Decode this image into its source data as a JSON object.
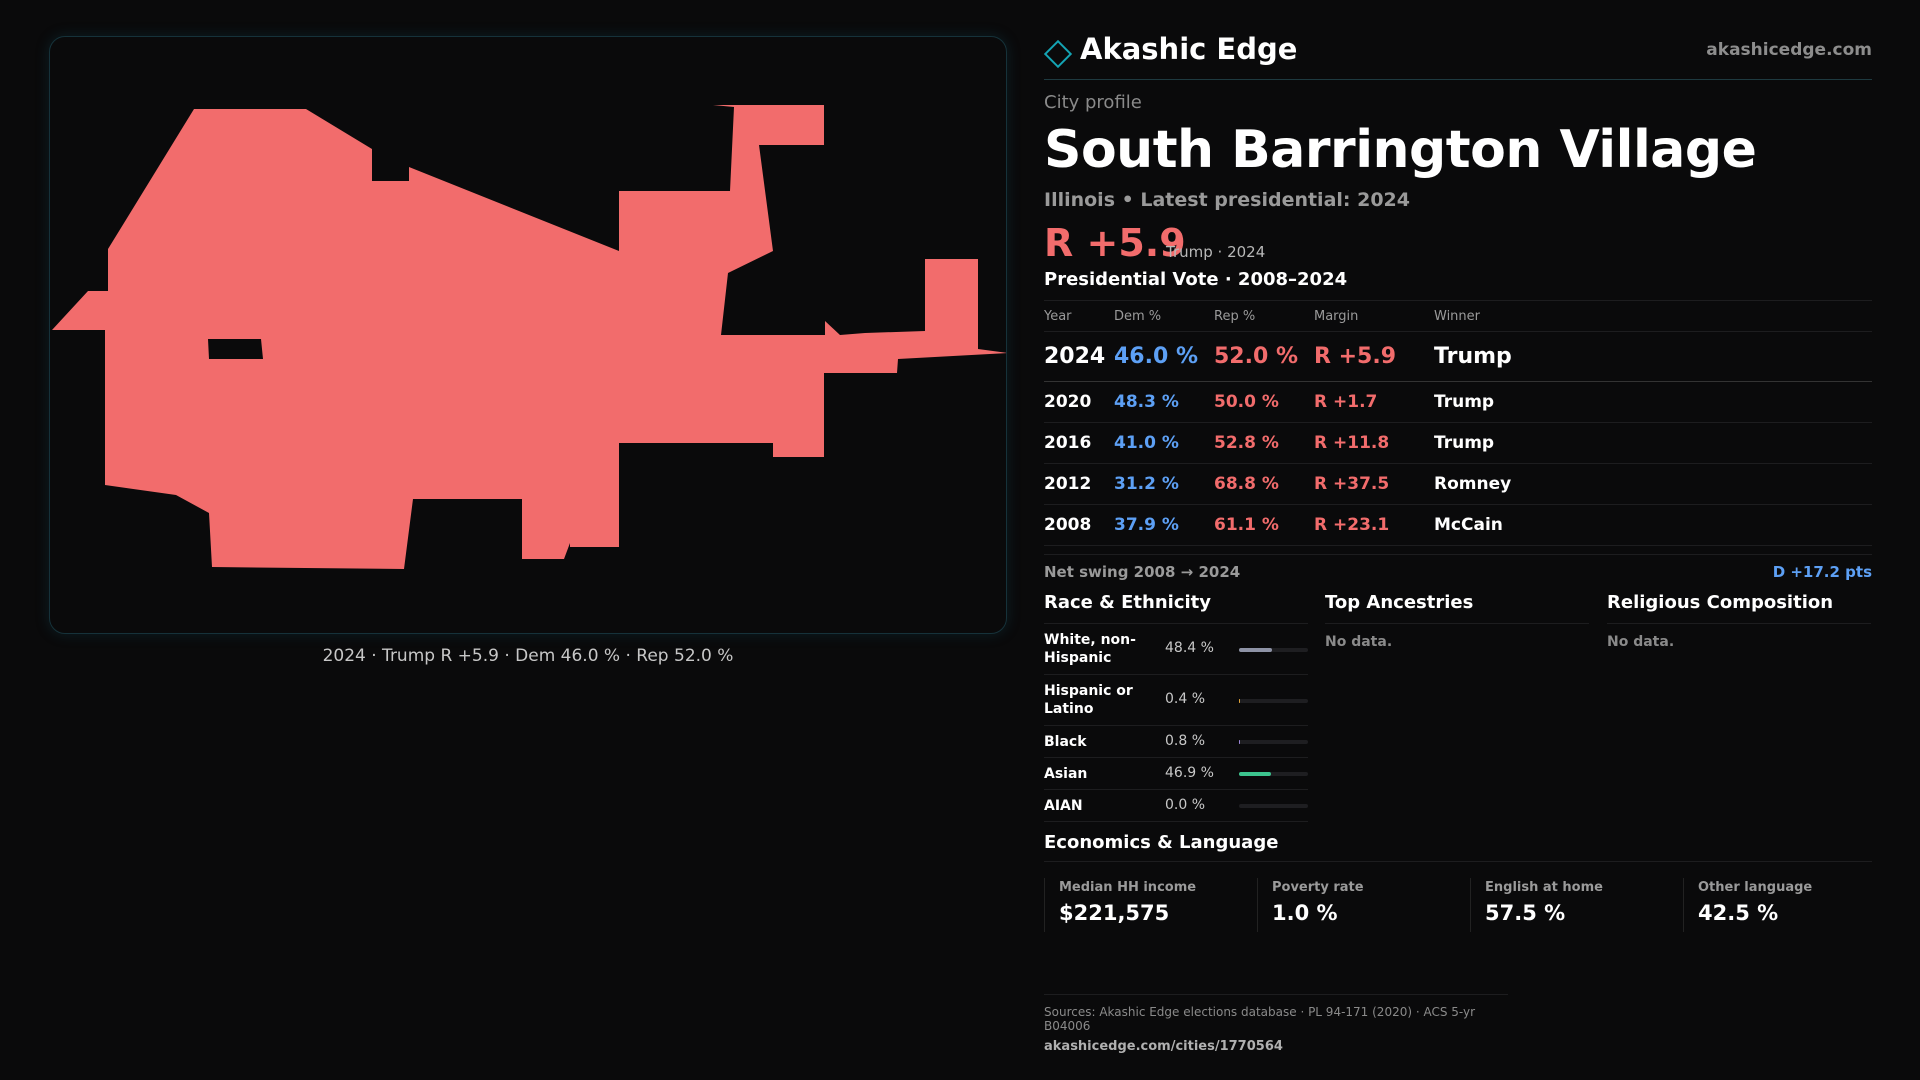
{
  "map": {
    "caption": "2024 · Trump R +5.9 · Dem 46.0 % · Rep 52.0 %",
    "fill_color": "#f26c6c"
  },
  "brand": {
    "name": "Akashic Edge",
    "url": "akashicedge.com",
    "icon": "diamond-logo-icon"
  },
  "profile": {
    "kicker": "City profile",
    "title": "South Barrington Village",
    "subtitle": "Illinois • Latest presidential: 2024",
    "margin": "R +5.9",
    "margin_note": "Trump · 2024"
  },
  "votes": {
    "heading": "Presidential Vote · 2008–2024",
    "columns": [
      "Year",
      "Dem %",
      "Rep %",
      "Margin",
      "Winner"
    ],
    "rows": [
      {
        "year": "2024",
        "dem": "46.0 %",
        "rep": "52.0 %",
        "margin": "R +5.9",
        "winner": "Trump"
      },
      {
        "year": "2020",
        "dem": "48.3 %",
        "rep": "50.0 %",
        "margin": "R +1.7",
        "winner": "Trump"
      },
      {
        "year": "2016",
        "dem": "41.0 %",
        "rep": "52.8 %",
        "margin": "R +11.8",
        "winner": "Trump"
      },
      {
        "year": "2012",
        "dem": "31.2 %",
        "rep": "68.8 %",
        "margin": "R +37.5",
        "winner": "Romney"
      },
      {
        "year": "2008",
        "dem": "37.9 %",
        "rep": "61.1 %",
        "margin": "R +23.1",
        "winner": "McCain"
      }
    ],
    "swing_label": "Net swing 2008 → 2024",
    "swing_value": "D +17.2 pts"
  },
  "race": {
    "heading": "Race & Ethnicity",
    "rows": [
      {
        "label": "White, non-Hispanic",
        "pct": "48.4 %",
        "value": 48.4,
        "color": "#8e93a6"
      },
      {
        "label": "Hispanic or Latino",
        "pct": "0.4 %",
        "value": 0.4,
        "color": "#e0a43a"
      },
      {
        "label": "Black",
        "pct": "0.8 %",
        "value": 0.8,
        "color": "#9b86d6"
      },
      {
        "label": "Asian",
        "pct": "46.9 %",
        "value": 46.9,
        "color": "#3cc48e"
      },
      {
        "label": "AIAN",
        "pct": "0.0 %",
        "value": 0.0,
        "color": "#c8c8c8"
      }
    ]
  },
  "ancestries": {
    "heading": "Top Ancestries",
    "empty": "No data."
  },
  "religion": {
    "heading": "Religious Composition",
    "empty": "No data."
  },
  "economics": {
    "heading": "Economics & Language",
    "cells": [
      {
        "label": "Median HH income",
        "value": "$221,575"
      },
      {
        "label": "Poverty rate",
        "value": "1.0 %"
      },
      {
        "label": "English at home",
        "value": "57.5 %"
      },
      {
        "label": "Other language",
        "value": "42.5 %"
      }
    ]
  },
  "sources": {
    "line": "Sources: Akashic Edge elections database · PL 94-171 (2020) · ACS 5-yr B04006",
    "url": "akashicedge.com/cities/1770564"
  }
}
